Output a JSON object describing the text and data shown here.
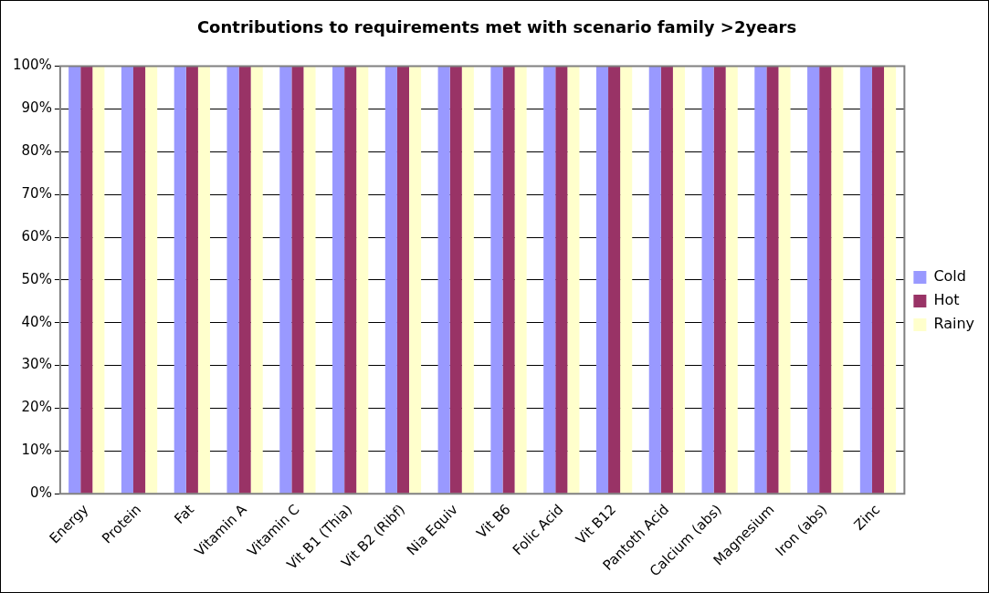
{
  "chart_data": {
    "type": "bar",
    "title": "Contributions to requirements met with scenario family >2years",
    "categories": [
      "Energy",
      "Protein",
      "Fat",
      "Vitamin A",
      "Vitamin C",
      "Vit B1 (Thia)",
      "Vit B2 (Ribf)",
      "Nia Equiv",
      "Vit B6",
      "Folic Acid",
      "Vit B12",
      "Pantoth Acid",
      "Calcium (abs)",
      "Magnesium",
      "Iron (abs)",
      "Zinc"
    ],
    "series": [
      {
        "name": "Cold",
        "color": "#9999ff",
        "values": [
          100,
          100,
          100,
          100,
          100,
          100,
          100,
          100,
          100,
          100,
          100,
          100,
          100,
          100,
          100,
          100
        ]
      },
      {
        "name": "Hot",
        "color": "#993366",
        "values": [
          100,
          100,
          100,
          100,
          100,
          100,
          100,
          100,
          100,
          100,
          100,
          100,
          100,
          100,
          100,
          100
        ]
      },
      {
        "name": "Rainy",
        "color": "#ffffcc",
        "values": [
          100,
          100,
          100,
          100,
          100,
          100,
          100,
          100,
          100,
          100,
          100,
          100,
          100,
          100,
          100,
          100
        ]
      }
    ],
    "ylim": [
      0,
      100
    ],
    "yticks": [
      {
        "value": 0,
        "label": "0%"
      },
      {
        "value": 10,
        "label": "10%"
      },
      {
        "value": 20,
        "label": "20%"
      },
      {
        "value": 30,
        "label": "30%"
      },
      {
        "value": 40,
        "label": "40%"
      },
      {
        "value": 50,
        "label": "50%"
      },
      {
        "value": 60,
        "label": "60%"
      },
      {
        "value": 70,
        "label": "70%"
      },
      {
        "value": 80,
        "label": "80%"
      },
      {
        "value": 90,
        "label": "90%"
      },
      {
        "value": 100,
        "label": "100%"
      }
    ],
    "grid": "y",
    "legend": "right"
  }
}
